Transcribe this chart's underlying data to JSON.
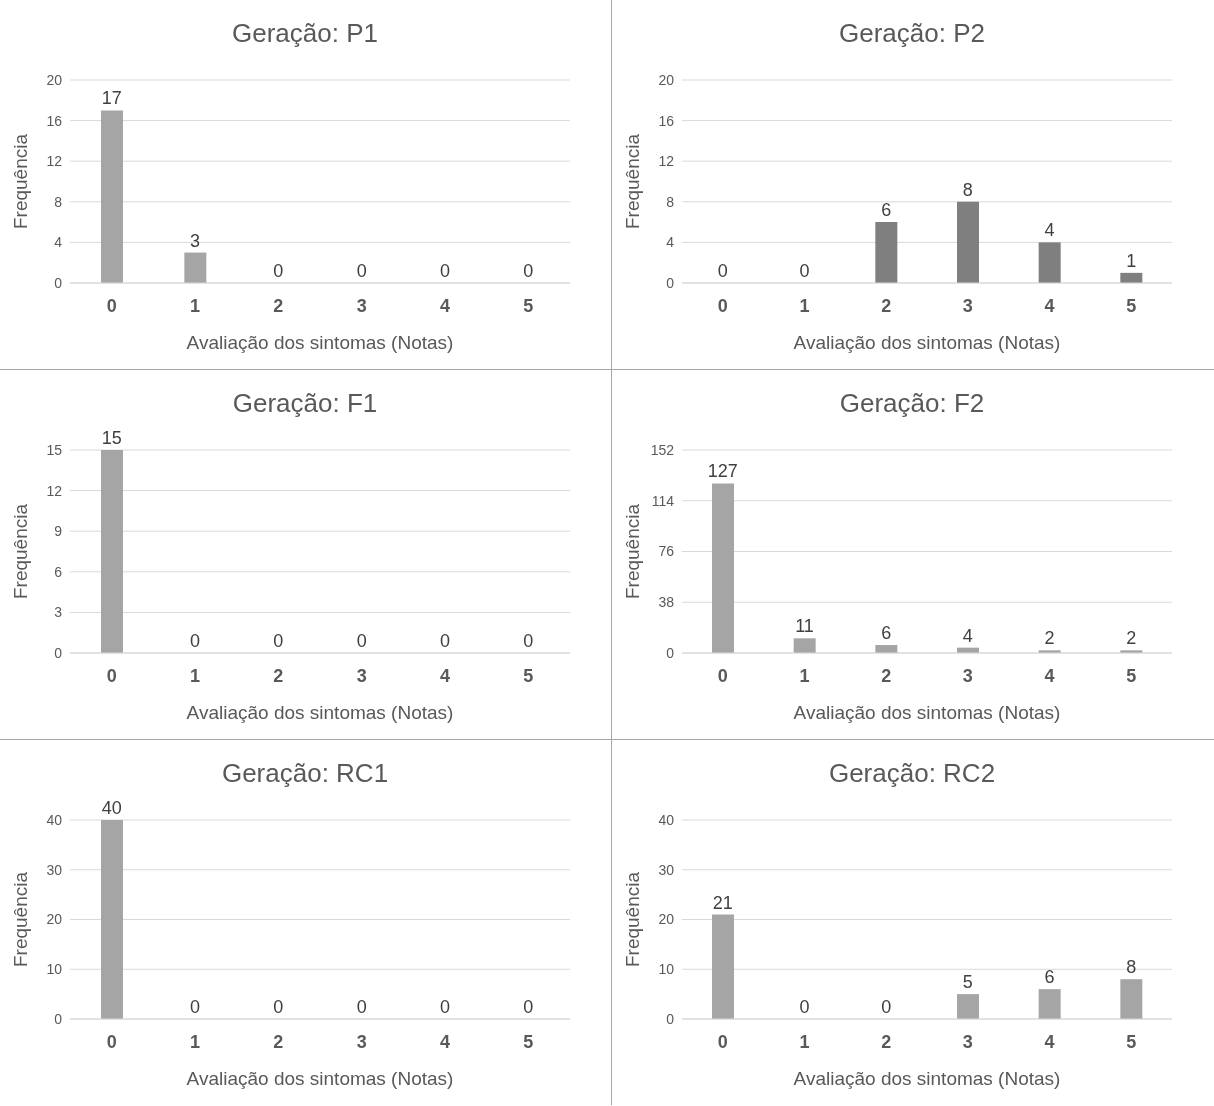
{
  "chart_data": [
    {
      "type": "bar",
      "title": "Geração: P1",
      "xlabel": "Avaliação dos sintomas (Notas)",
      "ylabel": "Frequência",
      "categories": [
        "0",
        "1",
        "2",
        "3",
        "4",
        "5"
      ],
      "values": [
        17,
        3,
        0,
        0,
        0,
        0
      ],
      "color": "#a5a5a5",
      "ylim": [
        0,
        20
      ],
      "yticks": [
        0,
        4,
        8,
        12,
        16,
        20
      ],
      "grid": "y",
      "data_labels": true
    },
    {
      "type": "bar",
      "title": "Geração: P2",
      "xlabel": "Avaliação dos sintomas (Notas)",
      "ylabel": "Frequência",
      "categories": [
        "0",
        "1",
        "2",
        "3",
        "4",
        "5"
      ],
      "values": [
        0,
        0,
        6,
        8,
        4,
        1
      ],
      "color": "#7f7f7f",
      "ylim": [
        0,
        20
      ],
      "yticks": [
        0,
        4,
        8,
        12,
        16,
        20
      ],
      "grid": "y",
      "data_labels": true
    },
    {
      "type": "bar",
      "title": "Geração: F1",
      "xlabel": "Avaliação dos sintomas (Notas)",
      "ylabel": "Frequência",
      "categories": [
        "0",
        "1",
        "2",
        "3",
        "4",
        "5"
      ],
      "values": [
        15,
        0,
        0,
        0,
        0,
        0
      ],
      "color": "#a5a5a5",
      "ylim": [
        0,
        15
      ],
      "yticks": [
        0,
        3,
        6,
        9,
        12,
        15
      ],
      "grid": "y",
      "data_labels": true
    },
    {
      "type": "bar",
      "title": "Geração: F2",
      "xlabel": "Avaliação dos sintomas (Notas)",
      "ylabel": "Frequência",
      "categories": [
        "0",
        "1",
        "2",
        "3",
        "4",
        "5"
      ],
      "values": [
        127,
        11,
        6,
        4,
        2,
        2
      ],
      "color": "#a5a5a5",
      "ylim": [
        0,
        152
      ],
      "yticks": [
        0,
        38,
        76,
        114,
        152
      ],
      "grid": "y",
      "data_labels": true
    },
    {
      "type": "bar",
      "title": "Geração: RC1",
      "xlabel": "Avaliação dos sintomas (Notas)",
      "ylabel": "Frequência",
      "categories": [
        "0",
        "1",
        "2",
        "3",
        "4",
        "5"
      ],
      "values": [
        40,
        0,
        0,
        0,
        0,
        0
      ],
      "color": "#a5a5a5",
      "ylim": [
        0,
        40
      ],
      "yticks": [
        0,
        10,
        20,
        30,
        40
      ],
      "grid": "y",
      "data_labels": true
    },
    {
      "type": "bar",
      "title": "Geração: RC2",
      "xlabel": "Avaliação dos sintomas (Notas)",
      "ylabel": "Frequência",
      "categories": [
        "0",
        "1",
        "2",
        "3",
        "4",
        "5"
      ],
      "values": [
        21,
        0,
        0,
        5,
        6,
        8
      ],
      "color": "#a5a5a5",
      "ylim": [
        0,
        40
      ],
      "yticks": [
        0,
        10,
        20,
        30,
        40
      ],
      "grid": "y",
      "data_labels": true
    }
  ]
}
